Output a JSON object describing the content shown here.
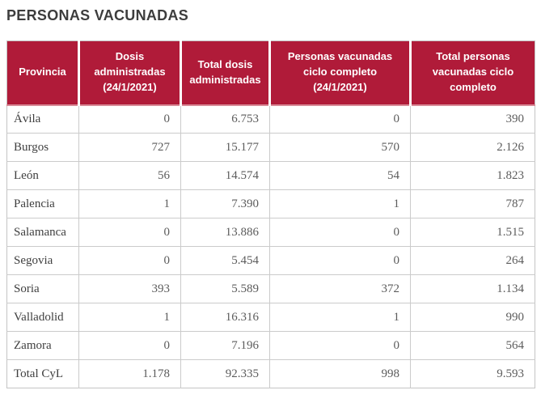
{
  "page": {
    "title": "PERSONAS VACUNADAS"
  },
  "colors": {
    "header_bg": "#b01b39",
    "header_text": "#ffffff",
    "header_underline": "#d88a97",
    "title_text": "#3d3d3d",
    "row_border": "#cbcbcb",
    "province_text": "#3f3f3f",
    "number_text": "#5c5c5c"
  },
  "chart_data": {
    "type": "table",
    "title": "PERSONAS VACUNADAS",
    "columns": [
      "Provincia",
      "Dosis administradas (24/1/2021)",
      "Total dosis administradas",
      "Personas vacunadas ciclo completo (24/1/2021)",
      "Total personas vacunadas ciclo completo"
    ],
    "rows": [
      [
        "Ávila",
        "0",
        "6.753",
        "0",
        "390"
      ],
      [
        "Burgos",
        "727",
        "15.177",
        "570",
        "2.126"
      ],
      [
        "León",
        "56",
        "14.574",
        "54",
        "1.823"
      ],
      [
        "Palencia",
        "1",
        "7.390",
        "1",
        "787"
      ],
      [
        "Salamanca",
        "0",
        "13.886",
        "0",
        "1.515"
      ],
      [
        "Segovia",
        "0",
        "5.454",
        "0",
        "264"
      ],
      [
        "Soria",
        "393",
        "5.589",
        "372",
        "1.134"
      ],
      [
        "Valladolid",
        "1",
        "16.316",
        "1",
        "990"
      ],
      [
        "Zamora",
        "0",
        "7.196",
        "0",
        "564"
      ],
      [
        "Total CyL",
        "1.178",
        "92.335",
        "998",
        "9.593"
      ]
    ]
  }
}
